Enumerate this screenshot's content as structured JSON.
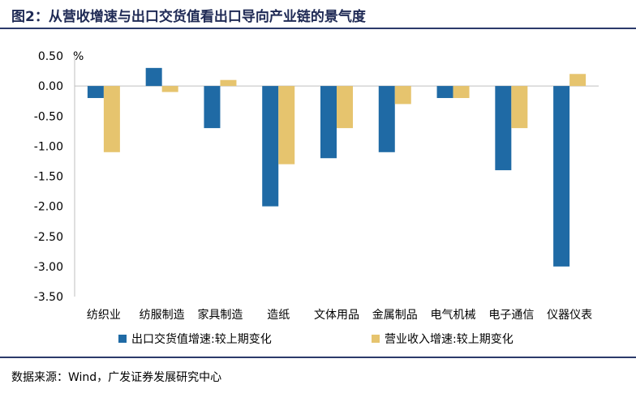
{
  "figure": {
    "title": "图2：从营收增速与出口交货值看出口导向产业链的景气度",
    "source": "数据来源：Wind，广发证券发展研究中心"
  },
  "chart_data": {
    "type": "bar",
    "categories": [
      "纺织业",
      "纺服制造",
      "家具制造",
      "造纸",
      "文体用品",
      "金属制品",
      "电气机械",
      "电子通信",
      "仪器仪表"
    ],
    "series": [
      {
        "name": "出口交货值增速:较上期变化",
        "color": "#1f6aa5",
        "values": [
          -0.2,
          0.3,
          -0.7,
          -2.0,
          -1.2,
          -1.1,
          -0.2,
          -1.4,
          -3.0
        ]
      },
      {
        "name": "营业收入增速:较上期变化",
        "color": "#e6c46e",
        "values": [
          -1.1,
          -0.1,
          0.1,
          -1.3,
          -0.7,
          -0.3,
          -0.2,
          -0.7,
          0.2
        ]
      }
    ],
    "yunit": "%",
    "ylim": [
      -3.5,
      0.5
    ],
    "yticks": [
      "0.50",
      "0.00",
      "-0.50",
      "-1.00",
      "-1.50",
      "-2.00",
      "-2.50",
      "-3.00",
      "-3.50"
    ],
    "grid": false,
    "legend_position": "bottom"
  }
}
